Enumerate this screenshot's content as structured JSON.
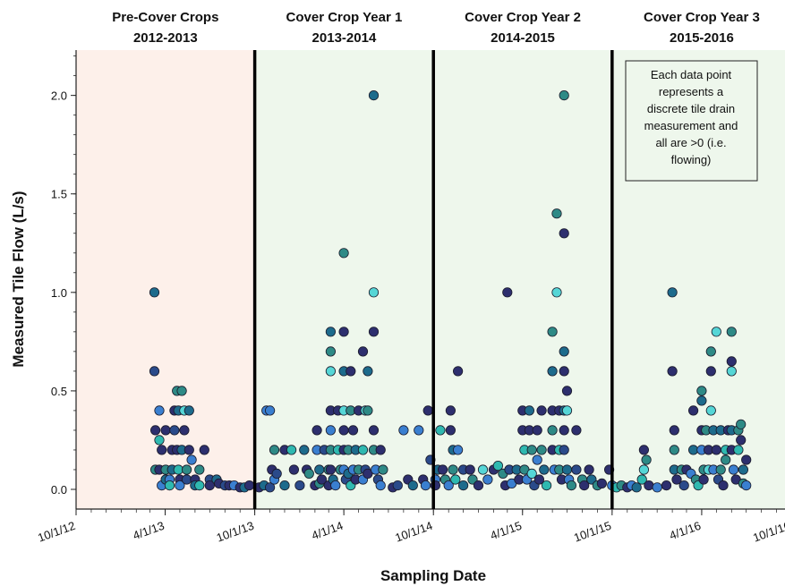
{
  "chart_data": {
    "type": "scatter",
    "xlabel": "Sampling Date",
    "ylabel": "Measured Tile Flow (L/s)",
    "x_range": [
      "2012-10-01",
      "2016-10-01"
    ],
    "ylim": [
      -0.1,
      2.23
    ],
    "x_ticks": [
      {
        "label": "10/1/12",
        "date": "2012-10-01"
      },
      {
        "label": "4/1/13",
        "date": "2013-04-01"
      },
      {
        "label": "10/1/13",
        "date": "2013-10-01"
      },
      {
        "label": "4/1/14",
        "date": "2014-04-01"
      },
      {
        "label": "10/1/14",
        "date": "2014-10-01"
      },
      {
        "label": "4/1/15",
        "date": "2015-04-01"
      },
      {
        "label": "10/1/15",
        "date": "2015-10-01"
      },
      {
        "label": "4/1/16",
        "date": "2016-04-01"
      },
      {
        "label": "10/1/16",
        "date": "2016-10-01"
      }
    ],
    "y_ticks": [
      {
        "label": "0.0",
        "value": 0
      },
      {
        "label": "0.5",
        "value": 0.5
      },
      {
        "label": "1.0",
        "value": 1.0
      },
      {
        "label": "1.5",
        "value": 1.5
      },
      {
        "label": "2.0",
        "value": 2.0
      }
    ],
    "periods": [
      {
        "title": "Pre-Cover Crops",
        "years": "2012-2013",
        "start": "2012-10-01",
        "end": "2013-10-01",
        "color": "#fdf0ea"
      },
      {
        "title": "Cover Crop Year 1",
        "years": "2013-2014",
        "start": "2013-10-01",
        "end": "2014-10-01",
        "color": "#eef7ec"
      },
      {
        "title": "Cover Crop Year 2",
        "years": "2014-2015",
        "start": "2014-10-01",
        "end": "2015-10-01",
        "color": "#eef7ec"
      },
      {
        "title": "Cover Crop Year 3",
        "years": "2015-2016",
        "start": "2015-10-01",
        "end": "2016-10-01",
        "color": "#eef7ec"
      }
    ],
    "annotation": {
      "lines": [
        "Each data point",
        "represents  a",
        "discrete tile drain",
        "measurement  and",
        "all are >0 (i.e.",
        "flowing)"
      ]
    },
    "palette": [
      "#2d2f6e",
      "#1d6b8c",
      "#2e8a86",
      "#3a7fd0",
      "#2fb9b0",
      "#55d6d6",
      "#2a4a8a"
    ],
    "points": [
      [
        "2013-03-10",
        0.6,
        6
      ],
      [
        "2013-03-10",
        1.0,
        1
      ],
      [
        "2013-03-12",
        0.3,
        0
      ],
      [
        "2013-03-12",
        0.1,
        2
      ],
      [
        "2013-03-20",
        0.4,
        3
      ],
      [
        "2013-03-20",
        0.25,
        4
      ],
      [
        "2013-03-20",
        0.1,
        0
      ],
      [
        "2013-03-25",
        0.2,
        0
      ],
      [
        "2013-03-25",
        0.02,
        3
      ],
      [
        "2013-04-02",
        0.3,
        0
      ],
      [
        "2013-04-02",
        0.1,
        2
      ],
      [
        "2013-04-02",
        0.05,
        1
      ],
      [
        "2013-04-10",
        0.05,
        3
      ],
      [
        "2013-04-10",
        0.02,
        4
      ],
      [
        "2013-04-15",
        0.2,
        0
      ],
      [
        "2013-04-15",
        0.1,
        1
      ],
      [
        "2013-04-20",
        0.4,
        0
      ],
      [
        "2013-04-20",
        0.3,
        6
      ],
      [
        "2013-04-25",
        0.5,
        2
      ],
      [
        "2013-04-25",
        0.2,
        0
      ],
      [
        "2013-04-28",
        0.4,
        1
      ],
      [
        "2013-04-28",
        0.1,
        4
      ],
      [
        "2013-05-01",
        0.05,
        0
      ],
      [
        "2013-05-01",
        0.02,
        3
      ],
      [
        "2013-05-05",
        0.5,
        2
      ],
      [
        "2013-05-05",
        0.2,
        1
      ],
      [
        "2013-05-10",
        0.4,
        5
      ],
      [
        "2013-05-10",
        0.3,
        0
      ],
      [
        "2013-05-15",
        0.1,
        2
      ],
      [
        "2013-05-15",
        0.05,
        6
      ],
      [
        "2013-05-20",
        0.4,
        1
      ],
      [
        "2013-05-20",
        0.2,
        0
      ],
      [
        "2013-05-25",
        0.15,
        3
      ],
      [
        "2013-06-01",
        0.05,
        0
      ],
      [
        "2013-06-01",
        0.02,
        1
      ],
      [
        "2013-06-10",
        0.1,
        2
      ],
      [
        "2013-06-10",
        0.02,
        4
      ],
      [
        "2013-06-20",
        0.2,
        0
      ],
      [
        "2013-07-01",
        0.05,
        6
      ],
      [
        "2013-07-01",
        0.02,
        0
      ],
      [
        "2013-07-15",
        0.05,
        1
      ],
      [
        "2013-07-20",
        0.03,
        0
      ],
      [
        "2013-08-01",
        0.02,
        6
      ],
      [
        "2013-08-10",
        0.02,
        0
      ],
      [
        "2013-08-20",
        0.02,
        3
      ],
      [
        "2013-09-01",
        0.01,
        0
      ],
      [
        "2013-09-10",
        0.01,
        1
      ],
      [
        "2013-09-20",
        0.02,
        0
      ],
      [
        "2013-10-10",
        0.01,
        0
      ],
      [
        "2013-10-20",
        0.02,
        1
      ],
      [
        "2013-10-25",
        0.4,
        3
      ],
      [
        "2013-11-01",
        0.4,
        3
      ],
      [
        "2013-11-01",
        0.01,
        6
      ],
      [
        "2013-11-05",
        0.1,
        0
      ],
      [
        "2013-11-10",
        0.2,
        2
      ],
      [
        "2013-11-10",
        0.05,
        3
      ],
      [
        "2013-11-15",
        0.08,
        6
      ],
      [
        "2013-12-01",
        0.2,
        0
      ],
      [
        "2013-12-01",
        0.02,
        1
      ],
      [
        "2013-12-15",
        0.2,
        4
      ],
      [
        "2013-12-20",
        0.1,
        0
      ],
      [
        "2014-01-01",
        0.02,
        6
      ],
      [
        "2014-01-10",
        0.2,
        1
      ],
      [
        "2014-01-15",
        0.1,
        0
      ],
      [
        "2014-01-20",
        0.08,
        2
      ],
      [
        "2014-02-01",
        0.02,
        0
      ],
      [
        "2014-02-05",
        0.3,
        0
      ],
      [
        "2014-02-05",
        0.2,
        3
      ],
      [
        "2014-02-10",
        0.1,
        1
      ],
      [
        "2014-02-10",
        0.03,
        2
      ],
      [
        "2014-02-15",
        0.05,
        0
      ],
      [
        "2014-02-20",
        0.2,
        6
      ],
      [
        "2014-03-01",
        0.1,
        2
      ],
      [
        "2014-03-01",
        0.02,
        0
      ],
      [
        "2014-03-05",
        0.8,
        1
      ],
      [
        "2014-03-05",
        0.7,
        2
      ],
      [
        "2014-03-05",
        0.6,
        5
      ],
      [
        "2014-03-05",
        0.4,
        0
      ],
      [
        "2014-03-05",
        0.3,
        3
      ],
      [
        "2014-03-05",
        0.2,
        2
      ],
      [
        "2014-03-05",
        0.1,
        0
      ],
      [
        "2014-03-10",
        0.05,
        1
      ],
      [
        "2014-03-15",
        0.02,
        3
      ],
      [
        "2014-03-20",
        0.4,
        0
      ],
      [
        "2014-03-20",
        0.2,
        4
      ],
      [
        "2014-03-25",
        0.1,
        2
      ],
      [
        "2014-04-01",
        1.2,
        2
      ],
      [
        "2014-04-01",
        0.8,
        0
      ],
      [
        "2014-04-01",
        0.6,
        1
      ],
      [
        "2014-04-01",
        0.4,
        5
      ],
      [
        "2014-04-01",
        0.3,
        0
      ],
      [
        "2014-04-01",
        0.2,
        0
      ],
      [
        "2014-04-01",
        0.1,
        3
      ],
      [
        "2014-04-05",
        0.05,
        6
      ],
      [
        "2014-04-10",
        0.2,
        2
      ],
      [
        "2014-04-10",
        0.08,
        1
      ],
      [
        "2014-04-15",
        0.6,
        0
      ],
      [
        "2014-04-15",
        0.4,
        2
      ],
      [
        "2014-04-15",
        0.02,
        4
      ],
      [
        "2014-04-20",
        0.3,
        0
      ],
      [
        "2014-04-20",
        0.1,
        3
      ],
      [
        "2014-04-25",
        0.2,
        1
      ],
      [
        "2014-04-25",
        0.05,
        0
      ],
      [
        "2014-05-01",
        0.4,
        0
      ],
      [
        "2014-05-01",
        0.1,
        2
      ],
      [
        "2014-05-10",
        0.7,
        0
      ],
      [
        "2014-05-10",
        0.2,
        4
      ],
      [
        "2014-05-10",
        0.05,
        3
      ],
      [
        "2014-05-15",
        0.4,
        5
      ],
      [
        "2014-05-15",
        0.1,
        6
      ],
      [
        "2014-05-20",
        0.6,
        1
      ],
      [
        "2014-05-20",
        0.4,
        2
      ],
      [
        "2014-05-20",
        0.08,
        0
      ],
      [
        "2014-06-01",
        2.0,
        1
      ],
      [
        "2014-06-01",
        1.0,
        5
      ],
      [
        "2014-06-01",
        0.8,
        0
      ],
      [
        "2014-06-01",
        0.3,
        0
      ],
      [
        "2014-06-01",
        0.2,
        2
      ],
      [
        "2014-06-05",
        0.1,
        3
      ],
      [
        "2014-06-10",
        0.05,
        6
      ],
      [
        "2014-06-15",
        0.2,
        0
      ],
      [
        "2014-06-15",
        0.02,
        3
      ],
      [
        "2014-06-20",
        0.1,
        2
      ],
      [
        "2014-07-10",
        0.01,
        0
      ],
      [
        "2014-07-20",
        0.02,
        6
      ],
      [
        "2014-08-01",
        0.3,
        3
      ],
      [
        "2014-08-10",
        0.05,
        0
      ],
      [
        "2014-08-20",
        0.02,
        1
      ],
      [
        "2014-09-01",
        0.3,
        3
      ],
      [
        "2014-09-10",
        0.05,
        0
      ],
      [
        "2014-09-15",
        0.02,
        3
      ],
      [
        "2014-09-20",
        0.4,
        0
      ],
      [
        "2014-09-25",
        0.15,
        6
      ],
      [
        "2014-10-05",
        0.05,
        3
      ],
      [
        "2014-10-05",
        0.02,
        0
      ],
      [
        "2014-10-10",
        0.1,
        1
      ],
      [
        "2014-10-15",
        0.3,
        4
      ],
      [
        "2014-10-20",
        0.1,
        0
      ],
      [
        "2014-10-25",
        0.05,
        2
      ],
      [
        "2014-11-01",
        0.02,
        3
      ],
      [
        "2014-11-05",
        0.4,
        0
      ],
      [
        "2014-11-05",
        0.3,
        0
      ],
      [
        "2014-11-10",
        0.2,
        1
      ],
      [
        "2014-11-10",
        0.1,
        2
      ],
      [
        "2014-11-15",
        0.05,
        4
      ],
      [
        "2014-11-20",
        0.6,
        0
      ],
      [
        "2014-11-20",
        0.2,
        3
      ],
      [
        "2014-12-01",
        0.1,
        6
      ],
      [
        "2014-12-01",
        0.02,
        1
      ],
      [
        "2014-12-15",
        0.1,
        0
      ],
      [
        "2014-12-20",
        0.05,
        2
      ],
      [
        "2015-01-01",
        0.02,
        0
      ],
      [
        "2015-01-10",
        0.1,
        5
      ],
      [
        "2015-01-20",
        0.05,
        3
      ],
      [
        "2015-02-01",
        0.1,
        0
      ],
      [
        "2015-02-10",
        0.12,
        4
      ],
      [
        "2015-02-20",
        0.08,
        2
      ],
      [
        "2015-02-25",
        0.02,
        0
      ],
      [
        "2015-03-01",
        1.0,
        0
      ],
      [
        "2015-03-05",
        0.1,
        6
      ],
      [
        "2015-03-10",
        0.03,
        3
      ],
      [
        "2015-03-20",
        0.1,
        1
      ],
      [
        "2015-03-25",
        0.05,
        0
      ],
      [
        "2015-04-01",
        0.4,
        0
      ],
      [
        "2015-04-01",
        0.3,
        0
      ],
      [
        "2015-04-05",
        0.2,
        4
      ],
      [
        "2015-04-05",
        0.1,
        2
      ],
      [
        "2015-04-10",
        0.05,
        3
      ],
      [
        "2015-04-15",
        0.4,
        1
      ],
      [
        "2015-04-15",
        0.3,
        0
      ],
      [
        "2015-04-20",
        0.2,
        2
      ],
      [
        "2015-04-20",
        0.08,
        5
      ],
      [
        "2015-04-25",
        0.02,
        6
      ],
      [
        "2015-05-01",
        0.3,
        0
      ],
      [
        "2015-05-01",
        0.15,
        3
      ],
      [
        "2015-05-05",
        0.05,
        0
      ],
      [
        "2015-05-10",
        0.4,
        0
      ],
      [
        "2015-05-10",
        0.2,
        2
      ],
      [
        "2015-05-15",
        0.1,
        1
      ],
      [
        "2015-05-20",
        0.02,
        4
      ],
      [
        "2015-06-01",
        0.8,
        2
      ],
      [
        "2015-06-01",
        0.6,
        1
      ],
      [
        "2015-06-01",
        0.4,
        0
      ],
      [
        "2015-06-01",
        0.3,
        2
      ],
      [
        "2015-06-01",
        0.2,
        0
      ],
      [
        "2015-06-05",
        0.1,
        3
      ],
      [
        "2015-06-10",
        1.4,
        2
      ],
      [
        "2015-06-10",
        1.0,
        5
      ],
      [
        "2015-06-15",
        0.4,
        0
      ],
      [
        "2015-06-15",
        0.2,
        4
      ],
      [
        "2015-06-15",
        0.1,
        2
      ],
      [
        "2015-06-20",
        0.05,
        0
      ],
      [
        "2015-06-25",
        2.0,
        2
      ],
      [
        "2015-06-25",
        1.3,
        0
      ],
      [
        "2015-06-25",
        0.7,
        1
      ],
      [
        "2015-06-25",
        0.6,
        0
      ],
      [
        "2015-06-25",
        0.4,
        1
      ],
      [
        "2015-06-25",
        0.3,
        0
      ],
      [
        "2015-06-25",
        0.2,
        6
      ],
      [
        "2015-07-01",
        0.5,
        0
      ],
      [
        "2015-07-01",
        0.4,
        5
      ],
      [
        "2015-07-01",
        0.1,
        1
      ],
      [
        "2015-07-05",
        0.05,
        3
      ],
      [
        "2015-07-10",
        0.02,
        2
      ],
      [
        "2015-07-20",
        0.3,
        0
      ],
      [
        "2015-07-20",
        0.1,
        6
      ],
      [
        "2015-08-01",
        0.05,
        2
      ],
      [
        "2015-08-05",
        0.02,
        0
      ],
      [
        "2015-08-15",
        0.1,
        0
      ],
      [
        "2015-08-20",
        0.05,
        1
      ],
      [
        "2015-09-01",
        0.02,
        2
      ],
      [
        "2015-09-10",
        0.03,
        0
      ],
      [
        "2015-09-25",
        0.1,
        0
      ],
      [
        "2015-10-01",
        0.02,
        3
      ],
      [
        "2015-10-10",
        0.01,
        4
      ],
      [
        "2015-10-20",
        0.02,
        2
      ],
      [
        "2015-11-01",
        0.01,
        0
      ],
      [
        "2015-11-10",
        0.02,
        3
      ],
      [
        "2015-11-20",
        0.01,
        1
      ],
      [
        "2015-12-01",
        0.05,
        4
      ],
      [
        "2015-12-05",
        0.2,
        0
      ],
      [
        "2015-12-05",
        0.1,
        5
      ],
      [
        "2015-12-10",
        0.15,
        2
      ],
      [
        "2015-12-15",
        0.02,
        0
      ],
      [
        "2016-01-01",
        0.01,
        3
      ],
      [
        "2016-01-20",
        0.02,
        0
      ],
      [
        "2016-02-01",
        1.0,
        1
      ],
      [
        "2016-02-01",
        0.6,
        0
      ],
      [
        "2016-02-05",
        0.3,
        0
      ],
      [
        "2016-02-05",
        0.2,
        2
      ],
      [
        "2016-02-05",
        0.1,
        1
      ],
      [
        "2016-02-10",
        0.05,
        0
      ],
      [
        "2016-02-20",
        0.1,
        2
      ],
      [
        "2016-02-25",
        0.02,
        6
      ],
      [
        "2016-03-01",
        0.1,
        0
      ],
      [
        "2016-03-10",
        0.08,
        3
      ],
      [
        "2016-03-15",
        0.4,
        0
      ],
      [
        "2016-03-15",
        0.2,
        1
      ],
      [
        "2016-03-20",
        0.05,
        2
      ],
      [
        "2016-03-25",
        0.02,
        4
      ],
      [
        "2016-04-01",
        0.5,
        2
      ],
      [
        "2016-04-01",
        0.45,
        1
      ],
      [
        "2016-04-01",
        0.3,
        0
      ],
      [
        "2016-04-01",
        0.2,
        3
      ],
      [
        "2016-04-05",
        0.1,
        2
      ],
      [
        "2016-04-05",
        0.05,
        0
      ],
      [
        "2016-04-10",
        0.3,
        2
      ],
      [
        "2016-04-15",
        0.2,
        0
      ],
      [
        "2016-04-15",
        0.1,
        5
      ],
      [
        "2016-04-20",
        0.7,
        2
      ],
      [
        "2016-04-20",
        0.6,
        0
      ],
      [
        "2016-04-20",
        0.4,
        5
      ],
      [
        "2016-04-25",
        0.3,
        1
      ],
      [
        "2016-04-25",
        0.1,
        3
      ],
      [
        "2016-05-01",
        0.8,
        5
      ],
      [
        "2016-05-01",
        0.2,
        0
      ],
      [
        "2016-05-05",
        0.05,
        6
      ],
      [
        "2016-05-10",
        0.3,
        1
      ],
      [
        "2016-05-10",
        0.1,
        2
      ],
      [
        "2016-05-15",
        0.02,
        0
      ],
      [
        "2016-05-20",
        0.2,
        4
      ],
      [
        "2016-05-20",
        0.15,
        2
      ],
      [
        "2016-05-25",
        0.3,
        0
      ],
      [
        "2016-06-01",
        0.8,
        2
      ],
      [
        "2016-06-01",
        0.65,
        0
      ],
      [
        "2016-06-01",
        0.6,
        5
      ],
      [
        "2016-06-01",
        0.3,
        1
      ],
      [
        "2016-06-01",
        0.2,
        0
      ],
      [
        "2016-06-05",
        0.1,
        3
      ],
      [
        "2016-06-10",
        0.05,
        0
      ],
      [
        "2016-06-15",
        0.3,
        2
      ],
      [
        "2016-06-15",
        0.2,
        4
      ],
      [
        "2016-06-20",
        0.33,
        2
      ],
      [
        "2016-06-20",
        0.25,
        0
      ],
      [
        "2016-06-25",
        0.1,
        1
      ],
      [
        "2016-06-25",
        0.03,
        2
      ],
      [
        "2016-07-01",
        0.15,
        0
      ],
      [
        "2016-07-01",
        0.02,
        3
      ]
    ]
  }
}
